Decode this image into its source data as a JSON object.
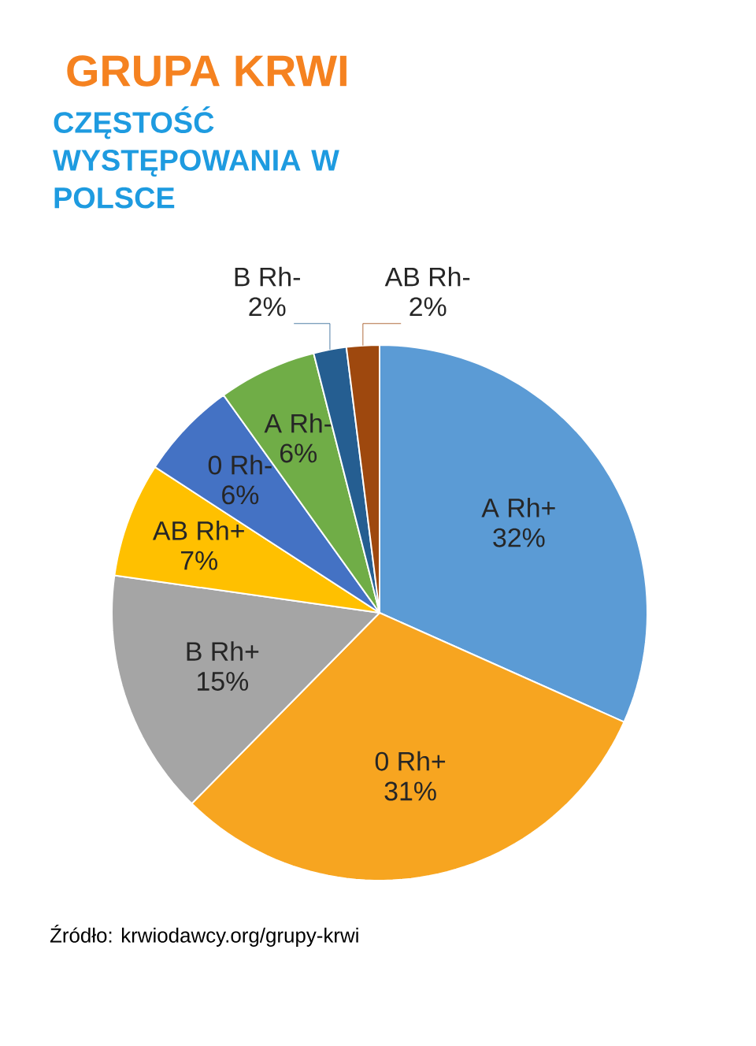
{
  "chart_data": {
    "type": "pie",
    "title": "GRUPA KRWI",
    "subtitle": "CZĘSTOŚĆ WYSTĘPOWANIA W POLSCE",
    "categories": [
      "A Rh+",
      "0 Rh+",
      "B Rh+",
      "AB Rh+",
      "0 Rh-",
      "A Rh-",
      "B Rh-",
      "AB Rh-"
    ],
    "values": [
      32,
      31,
      15,
      7,
      6,
      6,
      2,
      2
    ],
    "colors": [
      "#5b9bd5",
      "#f7a520",
      "#a5a5a5",
      "#ffc000",
      "#4472c4",
      "#70ad47",
      "#255e91",
      "#9e480e"
    ],
    "value_labels": [
      "32%",
      "31%",
      "15%",
      "7%",
      "6%",
      "6%",
      "2%",
      "2%"
    ],
    "annotations": [
      "Źródło: krwiodawcy.org/grupy-krwi"
    ]
  }
}
